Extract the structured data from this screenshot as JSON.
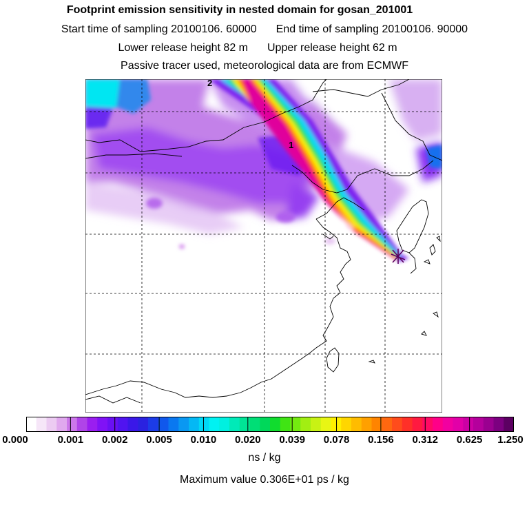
{
  "titles": {
    "line1": "Footprint emission sensitivity in nested domain for gosan_201001",
    "start": "Start time of sampling 20100106. 60000",
    "end": "End time of sampling 20100106. 90000",
    "lower": "Lower release height   82 m",
    "upper": "Upper release height   62 m",
    "line4": "Passive tracer used, meteorological data are from ECMWF"
  },
  "map": {
    "labels": [
      "2",
      "1"
    ],
    "release_marker": "receptor-star-icon",
    "map_features": [
      "coastline",
      "country borders",
      "graticule"
    ]
  },
  "colorbar": {
    "tick_labels": [
      "0.000",
      "0.001",
      "0.002",
      "0.005",
      "0.010",
      "0.020",
      "0.039",
      "0.078",
      "0.156",
      "0.312",
      "0.625",
      "1.250"
    ],
    "colors": [
      "#ffffff",
      "#f6e6f8",
      "#eccbf2",
      "#e0a8ee",
      "#cc77ea",
      "#b044e8",
      "#9a1ef0",
      "#8012f6",
      "#6a10f4",
      "#5014f0",
      "#3a18e8",
      "#2a22e0",
      "#1c3ce8",
      "#1058ec",
      "#0a78f0",
      "#0a98f2",
      "#04b8f4",
      "#00d8f6",
      "#00f2f2",
      "#00f0e0",
      "#00eab8",
      "#00e496",
      "#00de76",
      "#00d85a",
      "#10dc2e",
      "#40e414",
      "#74ea10",
      "#a2ee12",
      "#c8f214",
      "#e8f614",
      "#fff000",
      "#ffd600",
      "#ffbc00",
      "#ffa000",
      "#ff8400",
      "#ff6810",
      "#ff4c1c",
      "#ff3028",
      "#ff1a40",
      "#ff0a64",
      "#ff0088",
      "#f200a0",
      "#e200a8",
      "#cc00a4",
      "#b4009c",
      "#9a0090",
      "#7c0080",
      "#5c0062"
    ],
    "unit": "ns / kg",
    "max_value": "Maximum value  0.306E+01 ps / kg"
  }
}
